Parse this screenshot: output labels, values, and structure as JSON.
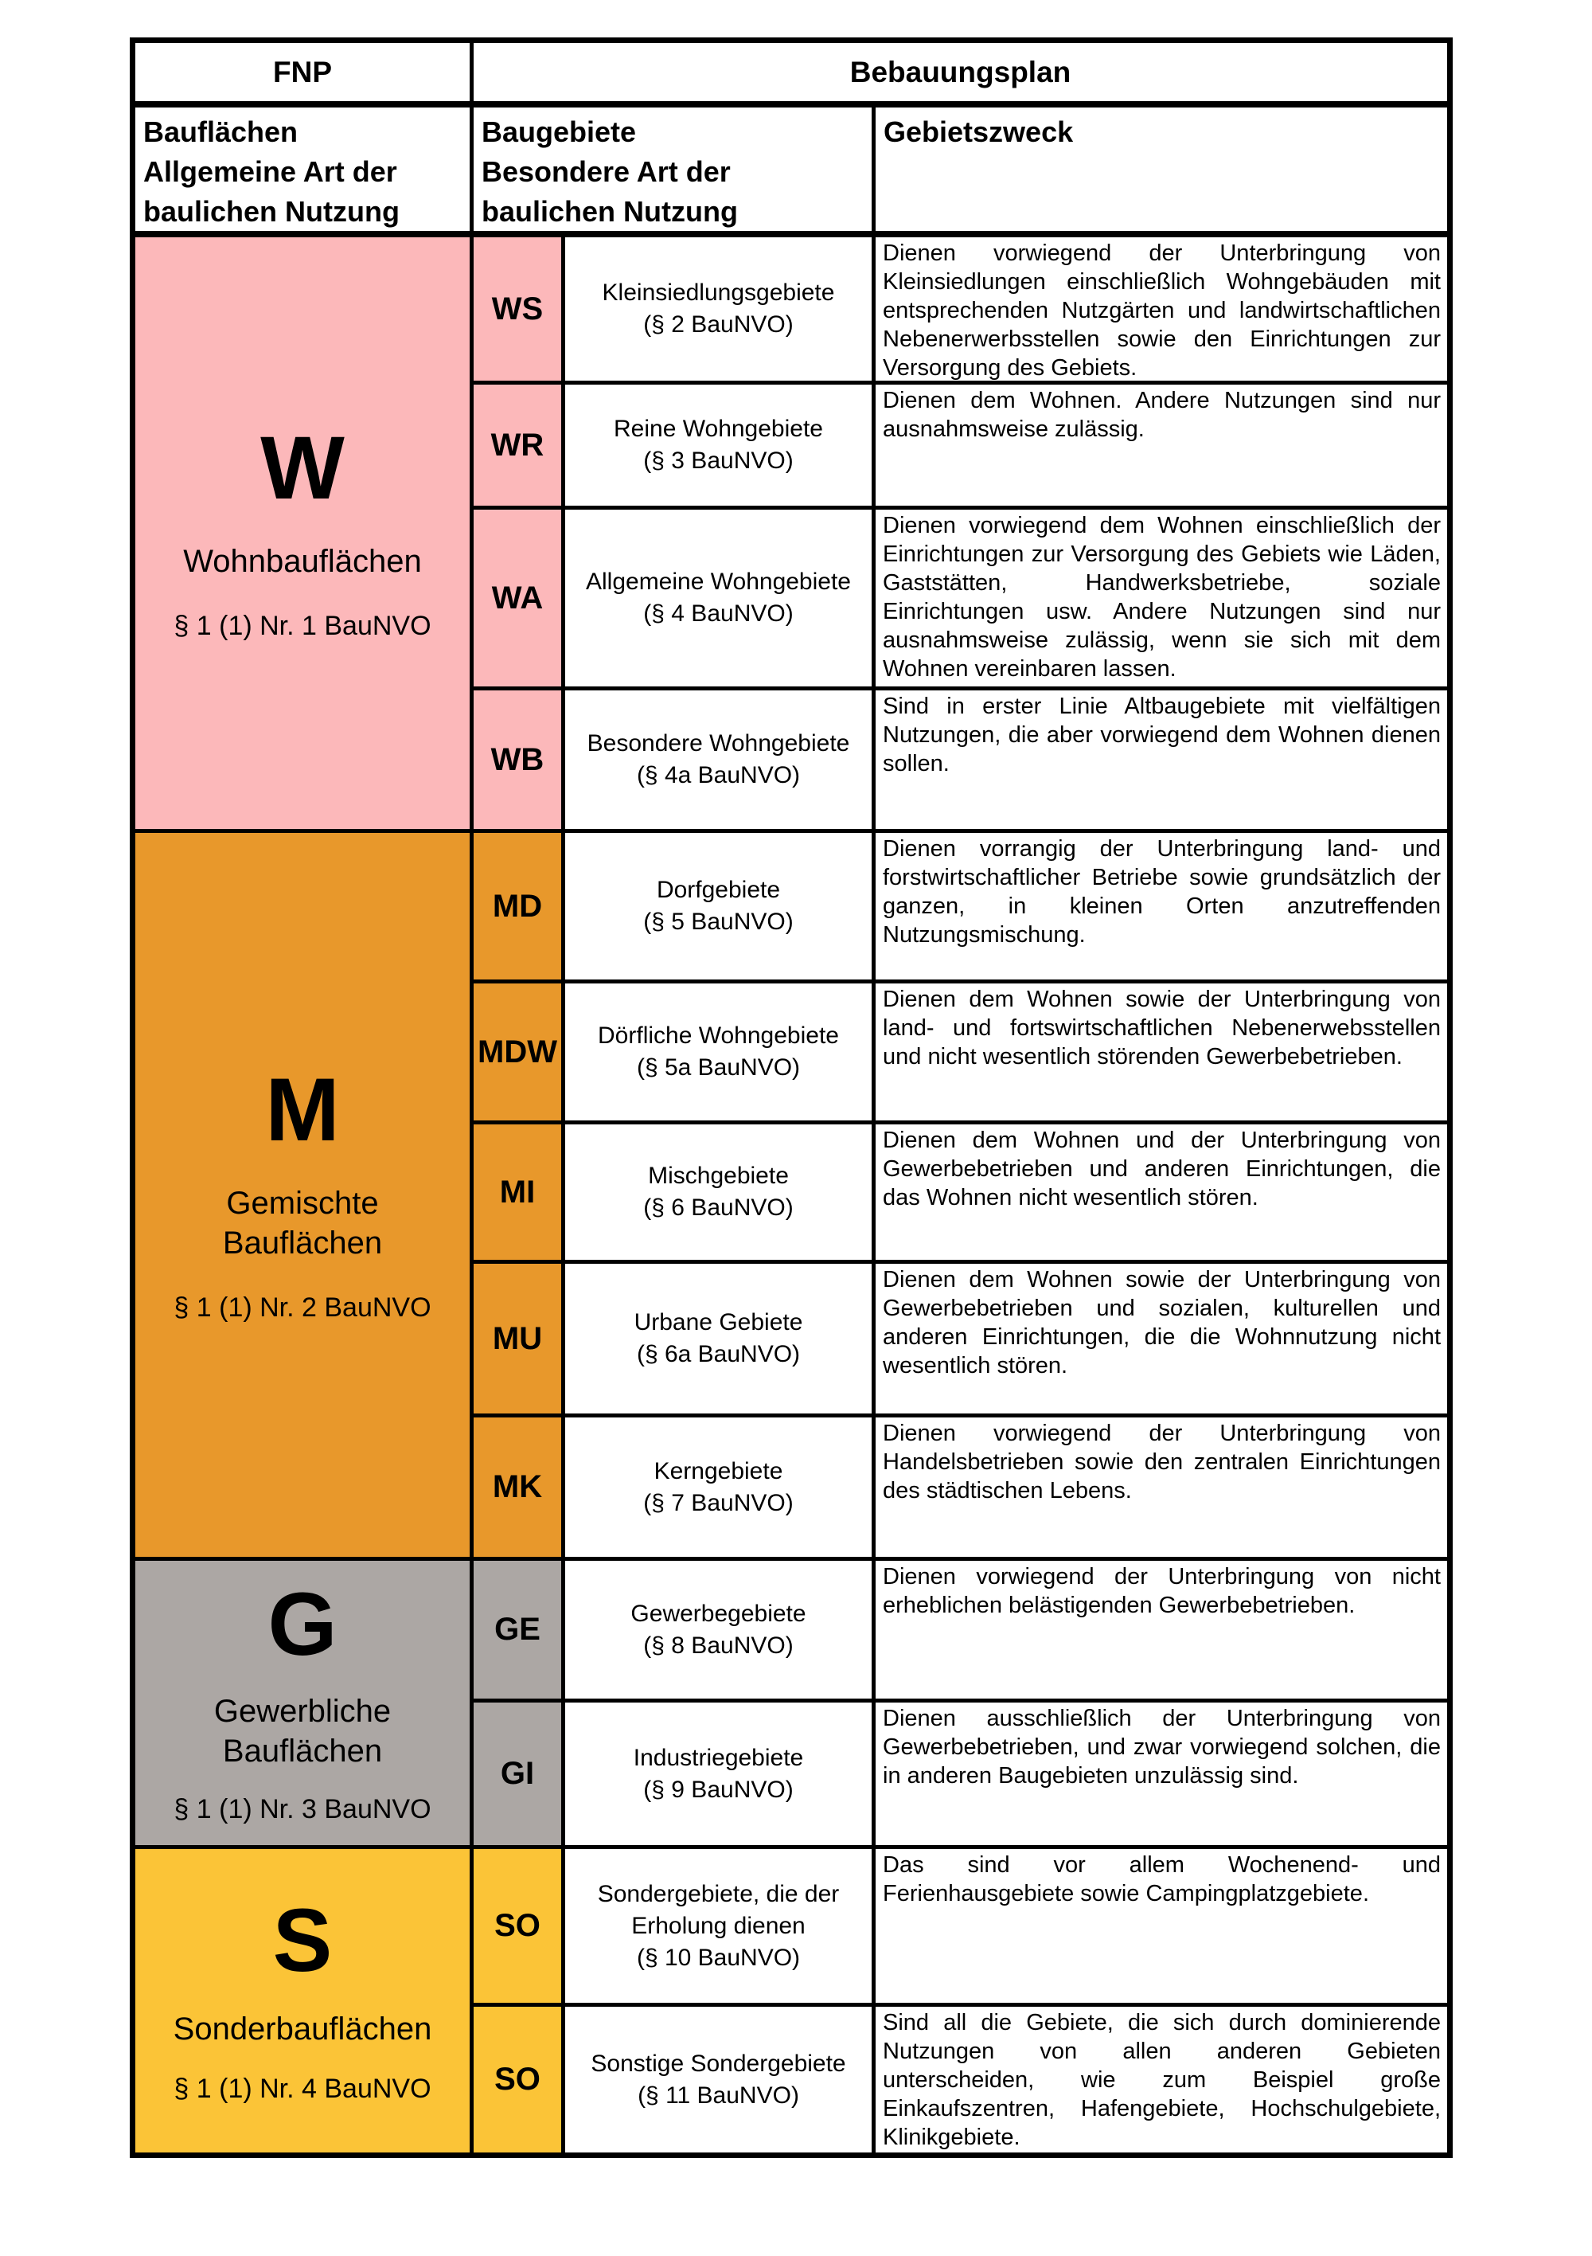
{
  "header": {
    "fnp": "FNP",
    "bebauungsplan": "Bebauungsplan",
    "col_flaechen": "Bauflächen\nAllgemeine Art der\nbaulichen Nutzung",
    "col_gebiete": "Baugebiete\nBesondere Art der\nbaulichen Nutzung",
    "col_zweck": "Gebietszweck"
  },
  "colors": {
    "border": "#000000",
    "wohn_pink": "#FCB8BA",
    "misch_orange": "#E8982B",
    "gewerbe_gray": "#ACA7A4",
    "sonder_yellow": "#FBC437"
  },
  "sections": [
    {
      "letter": "W",
      "name": "Wohnbauflächen",
      "law": "§ 1 (1) Nr. 1 BauNVO",
      "color": "#FCB8BA",
      "rows": [
        {
          "code": "WS",
          "area": "Kleinsiedlungsgebiete\n(§ 2 BauNVO)",
          "purpose": "Dienen vorwiegend der Unterbringung von Kleinsiedlungen einschließlich Wohngebäuden mit entsprechenden Nutzgärten und landwirtschaftlichen Nebenerwerbsstellen sowie den Einrichtungen zur Versorgung des Gebiets."
        },
        {
          "code": "WR",
          "area": "Reine Wohngebiete\n(§ 3 BauNVO)",
          "purpose": "Dienen dem Wohnen. Andere Nutzungen sind nur ausnahmsweise zulässig."
        },
        {
          "code": "WA",
          "area": "Allgemeine Wohngebiete\n(§ 4 BauNVO)",
          "purpose": "Dienen vorwiegend dem Wohnen einschließlich der Einrichtungen zur Versorgung des Gebiets wie Läden, Gaststätten, Handwerksbetriebe, soziale Einrichtungen usw. Andere Nutzungen sind nur ausnahmsweise zulässig, wenn sie sich mit dem Wohnen vereinbaren lassen."
        },
        {
          "code": "WB",
          "area": "Besondere Wohngebiete\n(§ 4a BauNVO)",
          "purpose": "Sind in erster Linie Altbaugebiete mit vielfältigen Nutzungen, die aber vorwiegend dem Wohnen dienen sollen."
        }
      ]
    },
    {
      "letter": "M",
      "name": "Gemischte\nBauflächen",
      "law": "§ 1 (1) Nr. 2 BauNVO",
      "color": "#E8982B",
      "rows": [
        {
          "code": "MD",
          "area": "Dorfgebiete\n(§ 5 BauNVO)",
          "purpose": "Dienen vorrangig der Unterbringung land- und forstwirtschaftlicher Betriebe sowie grundsätzlich der ganzen, in kleinen Orten anzutreffenden Nutzungsmischung."
        },
        {
          "code": "MDW",
          "area": "Dörfliche Wohngebiete\n(§ 5a BauNVO)",
          "purpose": "Dienen dem Wohnen sowie der Unterbringung von land- und fortswirtschaftlichen Nebenerwebsstellen und nicht wesentlich störenden Gewerbebetrieben."
        },
        {
          "code": "MI",
          "area": "Mischgebiete\n(§ 6 BauNVO)",
          "purpose": "Dienen dem Wohnen und der Unterbringung von Gewerbebetrieben und anderen Einrichtungen, die das Wohnen nicht wesentlich stören."
        },
        {
          "code": "MU",
          "area": "Urbane Gebiete\n(§ 6a BauNVO)",
          "purpose": "Dienen dem Wohnen sowie der Unterbringung von Gewerbebetrieben und sozialen, kulturellen und anderen Einrichtungen, die die Wohnnutzung nicht wesentlich stören."
        },
        {
          "code": "MK",
          "area": "Kerngebiete\n(§ 7 BauNVO)",
          "purpose": "Dienen vorwiegend der Unterbringung von Handelsbetrieben sowie den zentralen Einrichtungen des städtischen Lebens."
        }
      ]
    },
    {
      "letter": "G",
      "name": "Gewerbliche\nBauflächen",
      "law": "§ 1 (1) Nr. 3 BauNVO",
      "color": "#ACA7A4",
      "rows": [
        {
          "code": "GE",
          "area": "Gewerbegebiete\n(§ 8 BauNVO)",
          "purpose": "Dienen vorwiegend der Unterbringung von nicht erheblichen belästigenden Gewerbebetrieben."
        },
        {
          "code": "GI",
          "area": "Industriegebiete\n(§ 9 BauNVO)",
          "purpose": "Dienen ausschließlich der Unterbringung von Gewerbebetrieben, und zwar vorwiegend solchen, die in anderen Baugebieten unzulässig sind."
        }
      ]
    },
    {
      "letter": "S",
      "name": "Sonderbauflächen",
      "law": "§ 1 (1) Nr. 4 BauNVO",
      "color": "#FBC437",
      "rows": [
        {
          "code": "SO",
          "area": "Sondergebiete, die der\nErholung dienen\n(§ 10 BauNVO)",
          "purpose": "Das sind vor allem Wochenend- und Ferienhausgebiete sowie Campingplatzgebiete."
        },
        {
          "code": "SO",
          "area": "Sonstige Sondergebiete\n(§ 11 BauNVO)",
          "purpose": "Sind all die Gebiete, die sich durch dominierende Nutzungen von allen anderen Gebieten unterscheiden, wie zum Beispiel große Einkaufszentren, Hafengebiete, Hochschulgebiete, Klinikgebiete."
        }
      ]
    }
  ]
}
